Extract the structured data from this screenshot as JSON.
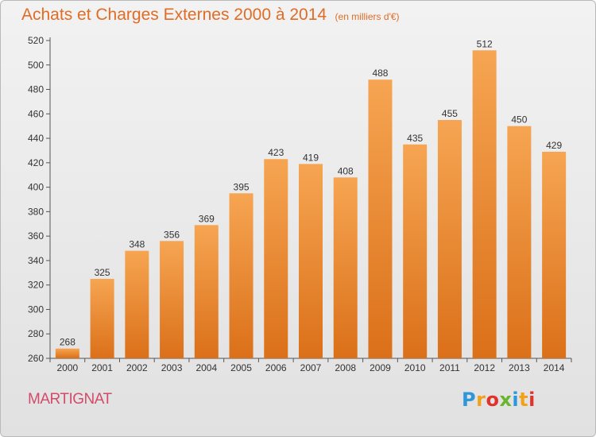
{
  "chart_data": {
    "type": "bar",
    "title": "Achats et Charges Externes 2000 à 2014",
    "unit": "(en milliers d'€)",
    "categories": [
      "2000",
      "2001",
      "2002",
      "2003",
      "2004",
      "2005",
      "2006",
      "2007",
      "2008",
      "2009",
      "2010",
      "2011",
      "2012",
      "2013",
      "2014"
    ],
    "values": [
      268,
      325,
      348,
      356,
      369,
      395,
      423,
      419,
      408,
      488,
      435,
      455,
      512,
      450,
      429
    ],
    "ylim": [
      260,
      520
    ],
    "yticks": [
      260,
      280,
      300,
      320,
      340,
      360,
      380,
      400,
      420,
      440,
      460,
      480,
      500,
      520
    ],
    "grid": false,
    "bar_color": "#f08a2c"
  },
  "commune": "MARTIGNAT",
  "logo": {
    "letters": [
      {
        "ch": "P",
        "color": "#2e97d8"
      },
      {
        "ch": "r",
        "color": "#f0a21c"
      },
      {
        "ch": "o",
        "color": "#e2322c"
      },
      {
        "ch": "x",
        "color": "#69b52d"
      },
      {
        "ch": "i",
        "color": "#2e97d8"
      },
      {
        "ch": "t",
        "color": "#f0a21c"
      },
      {
        "ch": "i",
        "color": "#e2322c"
      }
    ]
  }
}
